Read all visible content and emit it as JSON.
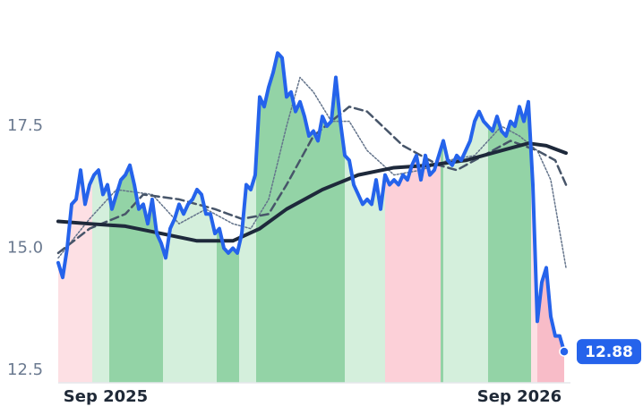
{
  "chart_data": {
    "type": "line",
    "xlim": [
      0,
      114.4
    ],
    "ylim": [
      12.24,
      19.72
    ],
    "xticks": [
      {
        "value": 10.6,
        "label": "Sep 2025"
      },
      {
        "value": 103,
        "label": "Sep 2026"
      }
    ],
    "yticks": [
      {
        "value": 12.5,
        "label": "12.5"
      },
      {
        "value": 15,
        "label": "15.0"
      },
      17.5
    ],
    "regions": [
      {
        "from": 0,
        "to": 7.6,
        "color": "#fde0e4"
      },
      {
        "from": 7.6,
        "to": 11.4,
        "color": "#d4efdc"
      },
      {
        "from": 11.4,
        "to": 23.4,
        "color": "#93d3a6"
      },
      {
        "from": 23.4,
        "to": 35.4,
        "color": "#d4efdc"
      },
      {
        "from": 35.4,
        "to": 40.4,
        "color": "#93d3a6"
      },
      {
        "from": 40.4,
        "to": 44.2,
        "color": "#d4efdc"
      },
      {
        "from": 44.2,
        "to": 64,
        "color": "#93d3a6"
      },
      {
        "from": 64,
        "to": 73,
        "color": "#d4efdc"
      },
      {
        "from": 73,
        "to": 85.4,
        "color": "#fcd0d8"
      },
      {
        "from": 85.4,
        "to": 86,
        "color": "#93d3a6"
      },
      {
        "from": 86,
        "to": 96,
        "color": "#d4efdc"
      },
      {
        "from": 96,
        "to": 105.6,
        "color": "#93d3a6"
      },
      {
        "from": 105.6,
        "to": 107,
        "color": "#fde0e4"
      },
      {
        "from": 107,
        "to": 113.4,
        "color": "#f8bcc8"
      }
    ],
    "series": [
      {
        "color": "#2563eb",
        "style": "solid",
        "width": 4,
        "x": [
          0,
          1,
          2,
          3,
          4,
          5,
          6,
          7,
          8,
          9,
          10,
          11,
          12,
          13,
          14,
          15,
          16,
          17,
          18,
          19,
          20,
          21,
          22,
          23,
          24,
          25,
          26,
          27,
          28,
          29,
          30,
          31,
          32,
          33,
          34,
          35,
          36,
          37,
          38,
          39,
          40,
          41,
          42,
          43,
          44,
          45,
          46,
          47,
          48,
          49,
          50,
          51,
          52,
          53,
          54,
          55,
          56,
          57,
          58,
          59,
          60,
          61,
          62,
          63,
          64,
          65,
          66,
          67,
          68,
          69,
          70,
          71,
          72,
          73,
          74,
          75,
          76,
          77,
          78,
          79,
          80,
          81,
          82,
          83,
          84,
          85,
          86,
          87,
          88,
          89,
          90,
          91,
          92,
          93,
          94,
          95,
          96,
          97,
          98,
          99,
          100,
          101,
          102,
          103,
          104,
          105,
          106,
          107,
          108,
          109,
          110,
          111,
          112,
          113
        ],
        "values": [
          14.7,
          14.4,
          15.0,
          15.9,
          16.0,
          16.6,
          15.9,
          16.3,
          16.5,
          16.6,
          16.1,
          16.3,
          15.8,
          16.1,
          16.4,
          16.5,
          16.7,
          16.3,
          15.8,
          15.9,
          15.5,
          16.0,
          15.3,
          15.1,
          14.8,
          15.4,
          15.6,
          15.9,
          15.7,
          15.9,
          16.0,
          16.2,
          16.1,
          15.7,
          15.7,
          15.3,
          15.4,
          15.0,
          14.9,
          15.0,
          14.9,
          15.3,
          16.3,
          16.2,
          16.5,
          18.1,
          17.9,
          18.3,
          18.6,
          19.0,
          18.9,
          18.1,
          18.2,
          17.8,
          18.0,
          17.7,
          17.3,
          17.4,
          17.2,
          17.7,
          17.5,
          17.6,
          18.5,
          17.6,
          16.9,
          16.8,
          16.3,
          16.1,
          15.9,
          16.0,
          15.9,
          16.4,
          15.8,
          16.5,
          16.3,
          16.4,
          16.3,
          16.5,
          16.4,
          16.7,
          16.9,
          16.4,
          16.9,
          16.5,
          16.6,
          16.9,
          17.2,
          16.8,
          16.7,
          16.9,
          16.8,
          17.0,
          17.2,
          17.6,
          17.8,
          17.6,
          17.5,
          17.4,
          17.7,
          17.4,
          17.3,
          17.6,
          17.5,
          17.9,
          17.6,
          18.0,
          16.3,
          13.5,
          14.3,
          14.6,
          13.6,
          13.2,
          13.2,
          12.88
        ]
      },
      {
        "color": "#1e293b",
        "style": "solid",
        "width": 4,
        "x": [
          0,
          7,
          15,
          23,
          31,
          39,
          45,
          51,
          59,
          67,
          75,
          83,
          91,
          99,
          105,
          109,
          113.4
        ],
        "values": [
          15.55,
          15.5,
          15.45,
          15.3,
          15.15,
          15.15,
          15.4,
          15.8,
          16.2,
          16.5,
          16.65,
          16.7,
          16.8,
          17.0,
          17.15,
          17.1,
          16.95
        ]
      },
      {
        "color": "#475569",
        "style": "dashed",
        "width": 2.5,
        "x": [
          0,
          7,
          15,
          19,
          27,
          35,
          41,
          47,
          51,
          57,
          65,
          69,
          77,
          85,
          89,
          95,
          101,
          107,
          111,
          113.4
        ],
        "values": [
          14.9,
          15.4,
          15.7,
          16.1,
          16.0,
          15.8,
          15.6,
          15.7,
          16.3,
          17.3,
          17.9,
          17.8,
          17.1,
          16.7,
          16.6,
          16.9,
          17.2,
          17.0,
          16.8,
          16.3
        ]
      },
      {
        "color": "#64748b",
        "style": "dotted",
        "width": 1.5,
        "x": [
          0,
          7,
          13,
          21,
          27,
          33,
          39,
          43,
          47,
          51,
          54,
          57,
          61,
          65,
          69,
          75,
          81,
          87,
          93,
          99,
          103,
          107,
          110,
          113.4
        ],
        "values": [
          14.8,
          15.6,
          16.2,
          16.1,
          15.5,
          15.8,
          15.5,
          15.4,
          16.0,
          17.5,
          18.5,
          18.2,
          17.6,
          17.6,
          17.0,
          16.5,
          16.6,
          16.8,
          16.9,
          17.5,
          17.3,
          17.0,
          16.4,
          14.6
        ]
      }
    ]
  }
}
